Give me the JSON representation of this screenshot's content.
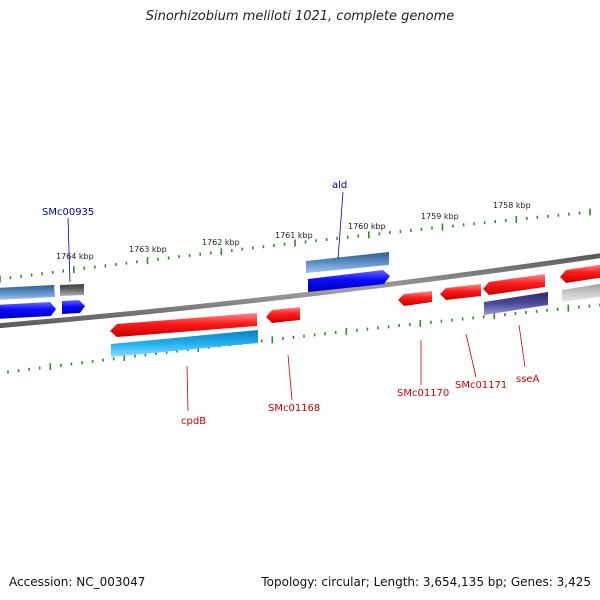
{
  "title": "Sinorhizobium meliloti 1021, complete genome",
  "footer": {
    "accession": "Accession: NC_003047",
    "summary": "Topology: circular; Length: 3,654,135 bp; Genes: 3,425"
  },
  "colors": {
    "backbone": "#7a7a7a",
    "tick": "#2e8b2e",
    "forward_label": "#0000aa",
    "reverse_label": "#cc0000"
  },
  "ticks": [
    {
      "label": "1764 kbp"
    },
    {
      "label": "1763 kbp"
    },
    {
      "label": "1762 kbp"
    },
    {
      "label": "1761 kbp"
    },
    {
      "label": "1760 kbp"
    },
    {
      "label": "1759 kbp"
    },
    {
      "label": "1758 kbp"
    }
  ],
  "gene_labels": [
    {
      "name": "SMc00935",
      "strand": "forward"
    },
    {
      "name": "ald",
      "strand": "forward"
    },
    {
      "name": "cpdB",
      "strand": "reverse"
    },
    {
      "name": "SMc01168",
      "strand": "reverse"
    },
    {
      "name": "SMc01170",
      "strand": "reverse"
    },
    {
      "name": "SMc01171",
      "strand": "reverse"
    },
    {
      "name": "sseA",
      "strand": "reverse"
    }
  ]
}
